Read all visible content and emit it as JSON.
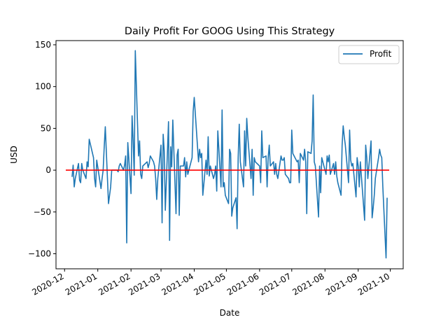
{
  "chart_data": {
    "type": "line",
    "title": "Daily Profit For GOOG Using This Strategy",
    "xlabel": "Date",
    "ylabel": "USD",
    "x_tick_labels": [
      "2020-12",
      "2021-01",
      "2021-02",
      "2021-03",
      "2021-04",
      "2021-05",
      "2021-06",
      "2021-07",
      "2021-08",
      "2021-09",
      "2021-10"
    ],
    "y_tick_labels": [
      "−100",
      "−50",
      "0",
      "50",
      "100",
      "150"
    ],
    "xlim": [
      "2020-11-23",
      "2021-10-13"
    ],
    "ylim": [
      -118,
      155
    ],
    "grid": false,
    "legend": {
      "position": "top-right",
      "entries": [
        "Profit"
      ]
    },
    "horizontal_line": {
      "y": 0,
      "color": "#ff0000"
    },
    "series": [
      {
        "name": "Profit",
        "color": "#1f77b4",
        "points": [
          [
            "2020-12-08",
            -8
          ],
          [
            "2020-12-09",
            6
          ],
          [
            "2020-12-10",
            -20
          ],
          [
            "2020-12-11",
            -10
          ],
          [
            "2020-12-14",
            8
          ],
          [
            "2020-12-15",
            -12
          ],
          [
            "2020-12-16",
            -15
          ],
          [
            "2020-12-17",
            8
          ],
          [
            "2020-12-18",
            0
          ],
          [
            "2020-12-21",
            -10
          ],
          [
            "2020-12-22",
            10
          ],
          [
            "2020-12-23",
            4
          ],
          [
            "2020-12-24",
            37
          ],
          [
            "2020-12-28",
            15
          ],
          [
            "2020-12-29",
            -10
          ],
          [
            "2020-12-30",
            -20
          ],
          [
            "2020-12-31",
            12
          ],
          [
            "2021-01-04",
            -22
          ],
          [
            "2021-01-05",
            -10
          ],
          [
            "2021-01-06",
            0
          ],
          [
            "2021-01-07",
            28
          ],
          [
            "2021-01-08",
            52
          ],
          [
            "2021-01-11",
            -40
          ],
          [
            "2021-01-12",
            -30
          ],
          [
            "2021-01-13",
            -20
          ],
          [
            "2021-01-14",
            0
          ],
          [
            "2021-01-19",
            0
          ],
          [
            "2021-01-20",
            -2
          ],
          [
            "2021-01-21",
            5
          ],
          [
            "2021-01-22",
            8
          ],
          [
            "2021-01-25",
            0
          ],
          [
            "2021-01-26",
            6
          ],
          [
            "2021-01-27",
            17
          ],
          [
            "2021-01-28",
            -87
          ],
          [
            "2021-01-29",
            33
          ],
          [
            "2021-02-01",
            -28
          ],
          [
            "2021-02-02",
            65
          ],
          [
            "2021-02-03",
            35
          ],
          [
            "2021-02-04",
            -6
          ],
          [
            "2021-02-05",
            143
          ],
          [
            "2021-02-08",
            17
          ],
          [
            "2021-02-09",
            35
          ],
          [
            "2021-02-10",
            -5
          ],
          [
            "2021-02-11",
            -10
          ],
          [
            "2021-02-12",
            5
          ],
          [
            "2021-02-16",
            10
          ],
          [
            "2021-02-17",
            3
          ],
          [
            "2021-02-18",
            8
          ],
          [
            "2021-02-19",
            17
          ],
          [
            "2021-02-22",
            10
          ],
          [
            "2021-02-23",
            5
          ],
          [
            "2021-02-24",
            -10
          ],
          [
            "2021-02-25",
            -35
          ],
          [
            "2021-02-26",
            -10
          ],
          [
            "2021-03-01",
            30
          ],
          [
            "2021-03-02",
            -63
          ],
          [
            "2021-03-03",
            43
          ],
          [
            "2021-03-04",
            23
          ],
          [
            "2021-03-05",
            -48
          ],
          [
            "2021-03-08",
            58
          ],
          [
            "2021-03-09",
            -84
          ],
          [
            "2021-03-10",
            28
          ],
          [
            "2021-03-11",
            4
          ],
          [
            "2021-03-12",
            60
          ],
          [
            "2021-03-15",
            -52
          ],
          [
            "2021-03-16",
            18
          ],
          [
            "2021-03-17",
            25
          ],
          [
            "2021-03-18",
            -54
          ],
          [
            "2021-03-19",
            5
          ],
          [
            "2021-03-22",
            5
          ],
          [
            "2021-03-23",
            15
          ],
          [
            "2021-03-24",
            -8
          ],
          [
            "2021-03-25",
            10
          ],
          [
            "2021-03-26",
            -5
          ],
          [
            "2021-03-29",
            10
          ],
          [
            "2021-03-30",
            15
          ],
          [
            "2021-03-31",
            70
          ],
          [
            "2021-04-01",
            87
          ],
          [
            "2021-04-05",
            10
          ],
          [
            "2021-04-06",
            25
          ],
          [
            "2021-04-07",
            15
          ],
          [
            "2021-04-08",
            20
          ],
          [
            "2021-04-09",
            -30
          ],
          [
            "2021-04-12",
            12
          ],
          [
            "2021-04-13",
            -5
          ],
          [
            "2021-04-14",
            40
          ],
          [
            "2021-04-15",
            -7
          ],
          [
            "2021-04-16",
            5
          ],
          [
            "2021-04-19",
            -10
          ],
          [
            "2021-04-20",
            -5
          ],
          [
            "2021-04-21",
            5
          ],
          [
            "2021-04-22",
            -25
          ],
          [
            "2021-04-23",
            47
          ],
          [
            "2021-04-26",
            -20
          ],
          [
            "2021-04-27",
            72
          ],
          [
            "2021-04-28",
            -20
          ],
          [
            "2021-04-29",
            -15
          ],
          [
            "2021-04-30",
            -30
          ],
          [
            "2021-05-03",
            -40
          ],
          [
            "2021-05-04",
            25
          ],
          [
            "2021-05-05",
            20
          ],
          [
            "2021-05-06",
            -55
          ],
          [
            "2021-05-07",
            -45
          ],
          [
            "2021-05-10",
            -33
          ],
          [
            "2021-05-11",
            -70
          ],
          [
            "2021-05-12",
            15
          ],
          [
            "2021-05-13",
            55
          ],
          [
            "2021-05-14",
            10
          ],
          [
            "2021-05-17",
            -20
          ],
          [
            "2021-05-18",
            47
          ],
          [
            "2021-05-19",
            5
          ],
          [
            "2021-05-20",
            62
          ],
          [
            "2021-05-21",
            40
          ],
          [
            "2021-05-24",
            -10
          ],
          [
            "2021-05-25",
            25
          ],
          [
            "2021-05-26",
            -30
          ],
          [
            "2021-05-27",
            15
          ],
          [
            "2021-05-28",
            10
          ],
          [
            "2021-06-01",
            5
          ],
          [
            "2021-06-02",
            -15
          ],
          [
            "2021-06-03",
            47
          ],
          [
            "2021-06-04",
            15
          ],
          [
            "2021-06-07",
            17
          ],
          [
            "2021-06-08",
            -20
          ],
          [
            "2021-06-09",
            15
          ],
          [
            "2021-06-10",
            30
          ],
          [
            "2021-06-11",
            5
          ],
          [
            "2021-06-14",
            10
          ],
          [
            "2021-06-15",
            -5
          ],
          [
            "2021-06-16",
            8
          ],
          [
            "2021-06-17",
            -5
          ],
          [
            "2021-06-18",
            -10
          ],
          [
            "2021-06-21",
            17
          ],
          [
            "2021-06-22",
            12
          ],
          [
            "2021-06-23",
            12
          ],
          [
            "2021-06-24",
            15
          ],
          [
            "2021-06-25",
            -5
          ],
          [
            "2021-06-28",
            -10
          ],
          [
            "2021-06-29",
            -15
          ],
          [
            "2021-06-30",
            -15
          ],
          [
            "2021-07-01",
            48
          ],
          [
            "2021-07-02",
            20
          ],
          [
            "2021-07-06",
            10
          ],
          [
            "2021-07-07",
            12
          ],
          [
            "2021-07-08",
            -15
          ],
          [
            "2021-07-09",
            20
          ],
          [
            "2021-07-12",
            12
          ],
          [
            "2021-07-13",
            25
          ],
          [
            "2021-07-14",
            10
          ],
          [
            "2021-07-15",
            -52
          ],
          [
            "2021-07-16",
            22
          ],
          [
            "2021-07-19",
            20
          ],
          [
            "2021-07-20",
            35
          ],
          [
            "2021-07-21",
            90
          ],
          [
            "2021-07-22",
            10
          ],
          [
            "2021-07-23",
            5
          ],
          [
            "2021-07-26",
            -56
          ],
          [
            "2021-07-27",
            5
          ],
          [
            "2021-07-28",
            -27
          ],
          [
            "2021-07-29",
            15
          ],
          [
            "2021-07-30",
            10
          ],
          [
            "2021-08-02",
            -5
          ],
          [
            "2021-08-03",
            17
          ],
          [
            "2021-08-04",
            10
          ],
          [
            "2021-08-05",
            18
          ],
          [
            "2021-08-06",
            -5
          ],
          [
            "2021-08-09",
            8
          ],
          [
            "2021-08-10",
            -5
          ],
          [
            "2021-08-11",
            10
          ],
          [
            "2021-08-12",
            -7
          ],
          [
            "2021-08-13",
            -15
          ],
          [
            "2021-08-16",
            -30
          ],
          [
            "2021-08-17",
            30
          ],
          [
            "2021-08-18",
            53
          ],
          [
            "2021-08-19",
            40
          ],
          [
            "2021-08-20",
            30
          ],
          [
            "2021-08-23",
            -15
          ],
          [
            "2021-08-24",
            48
          ],
          [
            "2021-08-25",
            12
          ],
          [
            "2021-08-26",
            5
          ],
          [
            "2021-08-27",
            8
          ],
          [
            "2021-08-30",
            -32
          ],
          [
            "2021-08-31",
            15
          ],
          [
            "2021-09-01",
            5
          ],
          [
            "2021-09-02",
            -20
          ],
          [
            "2021-09-03",
            10
          ],
          [
            "2021-09-07",
            -60
          ],
          [
            "2021-09-08",
            30
          ],
          [
            "2021-09-09",
            15
          ],
          [
            "2021-09-10",
            -10
          ],
          [
            "2021-09-13",
            35
          ],
          [
            "2021-09-14",
            -57
          ],
          [
            "2021-09-15",
            -45
          ],
          [
            "2021-09-16",
            -30
          ],
          [
            "2021-09-17",
            -10
          ],
          [
            "2021-09-20",
            15
          ],
          [
            "2021-09-21",
            25
          ],
          [
            "2021-09-22",
            18
          ],
          [
            "2021-09-23",
            15
          ],
          [
            "2021-09-24",
            -20
          ],
          [
            "2021-09-27",
            -105
          ],
          [
            "2021-09-28",
            -33
          ]
        ]
      }
    ]
  }
}
